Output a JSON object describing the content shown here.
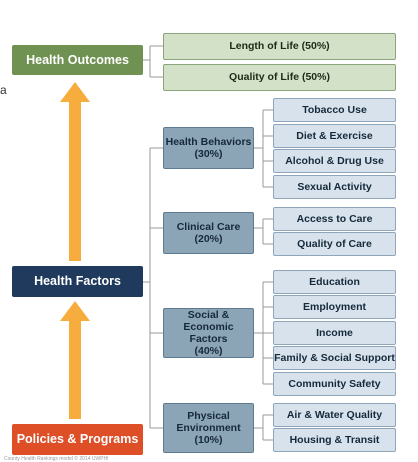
{
  "colors": {
    "outcomes": "#6f9152",
    "factors": "#1f3a5c",
    "policies": "#de4f28",
    "arrow": "#f7ad3e",
    "category": "#8ba4b6",
    "leaf": "#d7e2ec",
    "outcome_leaf": "#d4e1c9",
    "connector": "#9a9a9a"
  },
  "left_column": {
    "health_outcomes": "Health Outcomes",
    "health_factors": "Health Factors",
    "policies_programs": "Policies & Programs"
  },
  "outcomes": [
    "Length of Life (50%)",
    "Quality of Life (50%)"
  ],
  "factor_groups": [
    {
      "label": "Health Behaviors\n(30%)",
      "items": [
        "Tobacco Use",
        "Diet & Exercise",
        "Alcohol & Drug Use",
        "Sexual Activity"
      ]
    },
    {
      "label": "Clinical Care\n(20%)",
      "items": [
        "Access to Care",
        "Quality of Care"
      ]
    },
    {
      "label": "Social &\nEconomic Factors\n(40%)",
      "items": [
        "Education",
        "Employment",
        "Income",
        "Family & Social Support",
        "Community Safety"
      ]
    },
    {
      "label": "Physical\nEnvironment\n(10%)",
      "items": [
        "Air & Water Quality",
        "Housing & Transit"
      ]
    }
  ],
  "edge_text": "a",
  "footer": "County Health Rankings model © 2014 UWPHI"
}
